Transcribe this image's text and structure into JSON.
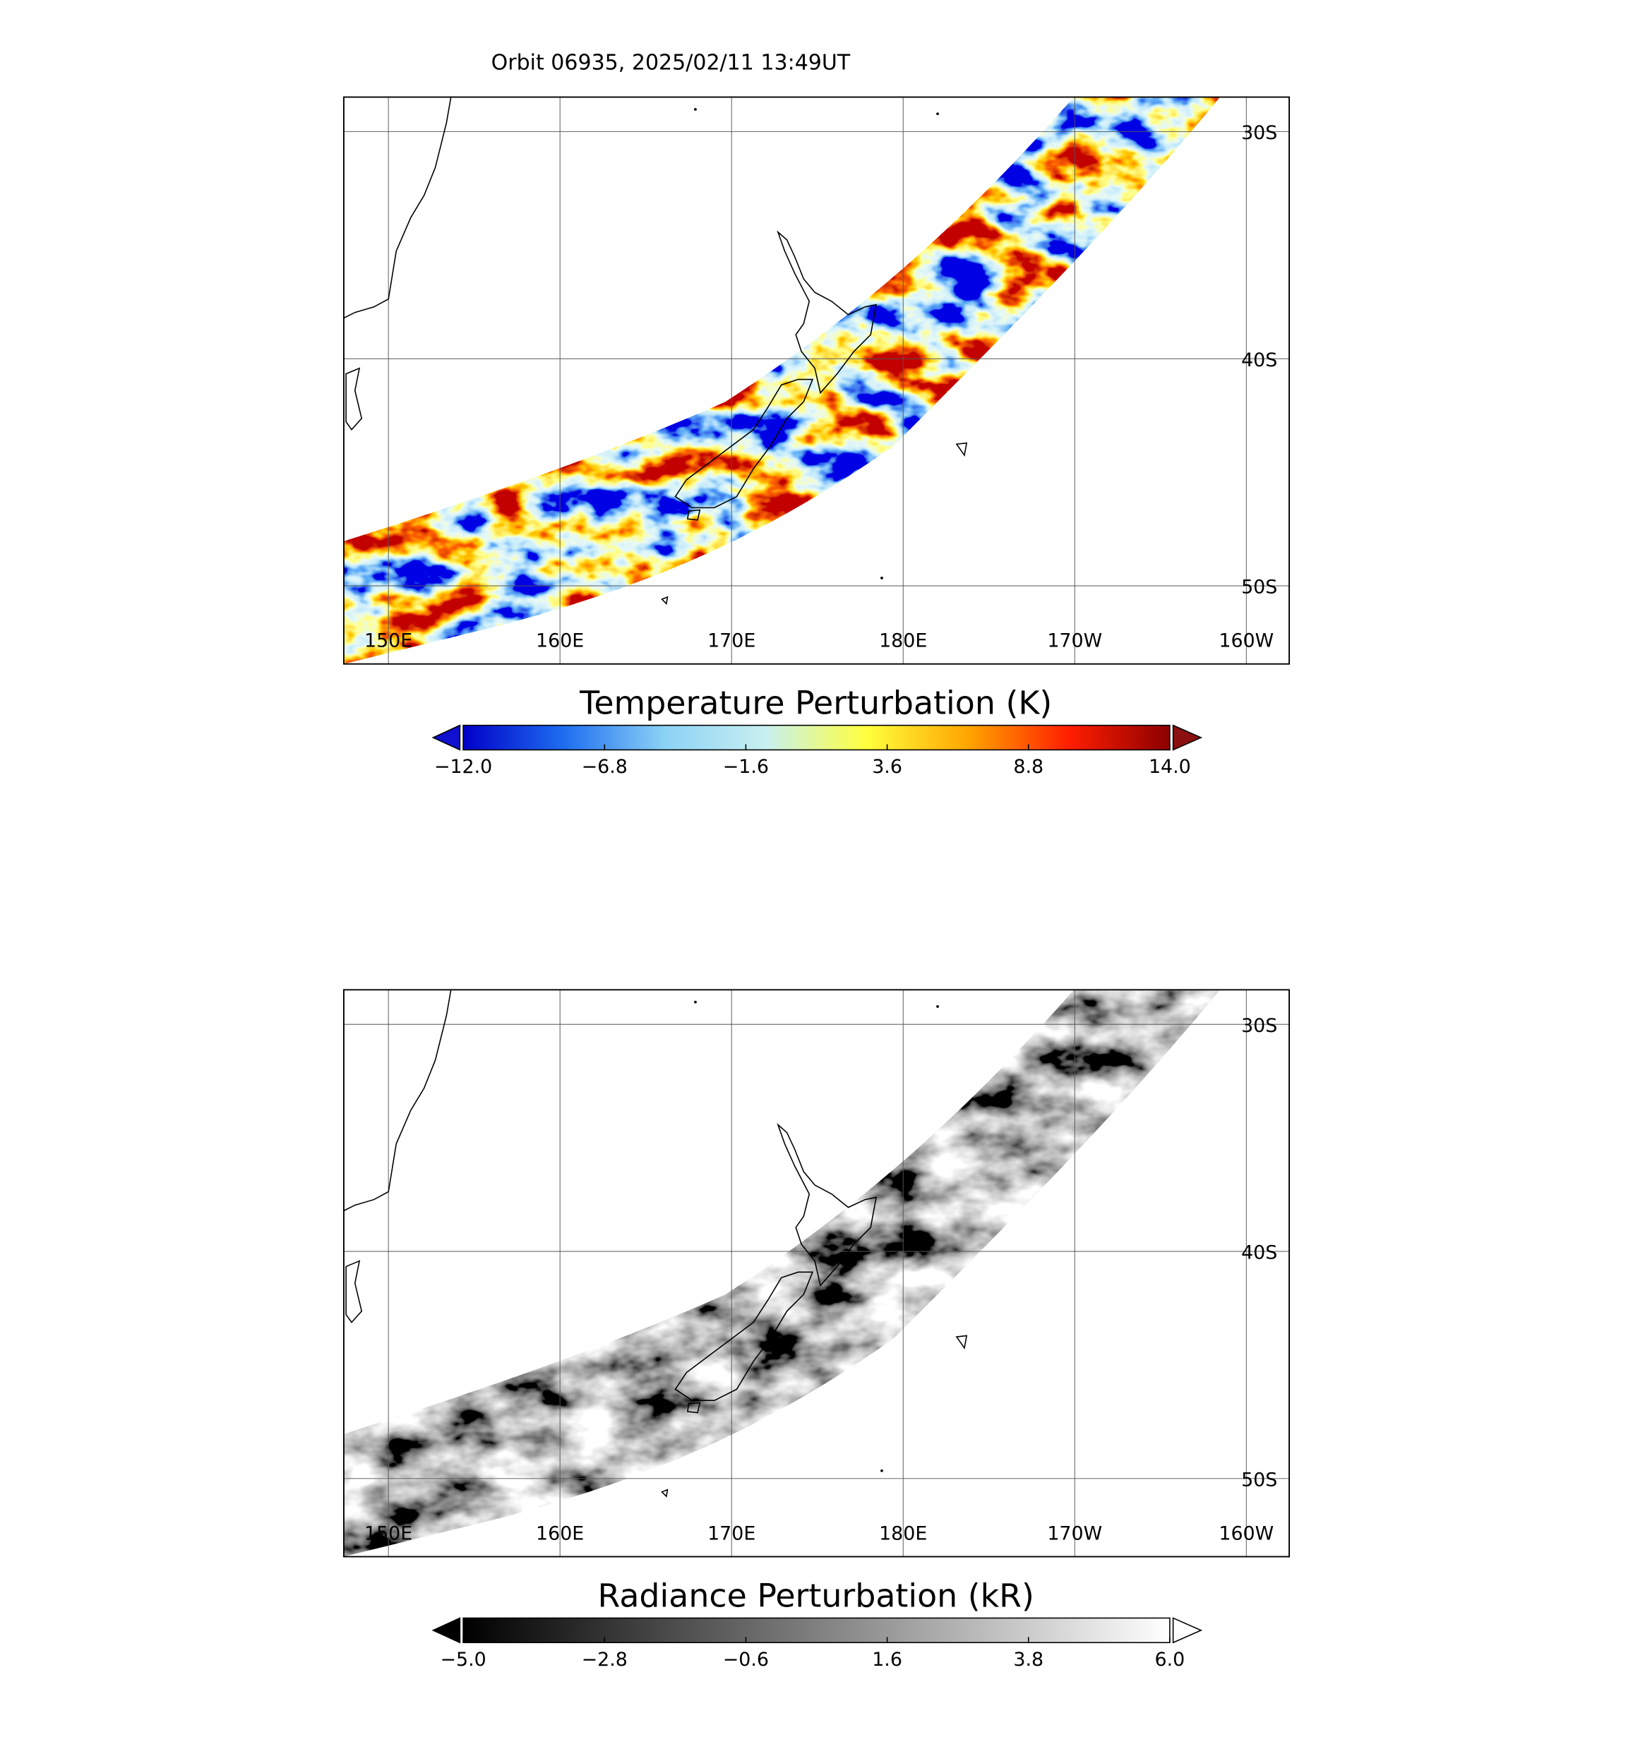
{
  "title": "Orbit 06935, 2025/02/11 13:49UT",
  "panels": [
    {
      "lon_lim": [
        147.4,
        202.5
      ],
      "lat_lim": [
        -53.44,
        -28.48
      ],
      "lon_ticks": [
        {
          "value": 150,
          "label": "150E"
        },
        {
          "value": 160,
          "label": "160E"
        },
        {
          "value": 170,
          "label": "170E"
        },
        {
          "value": 180,
          "label": "180E"
        },
        {
          "value": 190,
          "label": "170W"
        },
        {
          "value": 200,
          "label": "160W"
        }
      ],
      "lat_ticks": [
        {
          "value": -30,
          "label": "30S"
        },
        {
          "value": -40,
          "label": "40S"
        },
        {
          "value": -50,
          "label": "50S"
        }
      ],
      "colorbar": {
        "title": "Temperature Perturbation (K)",
        "lim": [
          -12,
          14
        ],
        "ticks": [
          {
            "value": -12,
            "label": "−12.0"
          },
          {
            "value": -6.8,
            "label": "−6.8"
          },
          {
            "value": -1.6,
            "label": "−1.6"
          },
          {
            "value": 3.6,
            "label": "3.6"
          },
          {
            "value": 8.8,
            "label": "8.8"
          },
          {
            "value": 14,
            "label": "14.0"
          }
        ],
        "colors": [
          "#0000c8",
          "#1e6ef0",
          "#8cd2f5",
          "#c8f0f0",
          "#ffff3c",
          "#ffa500",
          "#ff1e00",
          "#8c0000"
        ],
        "under_color": "#1010d0",
        "over_color": "#8c1010"
      }
    },
    {
      "lon_lim": [
        147.4,
        202.5
      ],
      "lat_lim": [
        -53.44,
        -28.48
      ],
      "lon_ticks": [
        {
          "value": 150,
          "label": "150E"
        },
        {
          "value": 160,
          "label": "160E"
        },
        {
          "value": 170,
          "label": "170E"
        },
        {
          "value": 180,
          "label": "180E"
        },
        {
          "value": 190,
          "label": "170W"
        },
        {
          "value": 200,
          "label": "160W"
        }
      ],
      "lat_ticks": [
        {
          "value": -30,
          "label": "30S"
        },
        {
          "value": -40,
          "label": "40S"
        },
        {
          "value": -50,
          "label": "50S"
        }
      ],
      "colorbar": {
        "title": "Radiance Perturbation (kR)",
        "lim": [
          -5,
          6
        ],
        "ticks": [
          {
            "value": -5,
            "label": "−5.0"
          },
          {
            "value": -2.8,
            "label": "−2.8"
          },
          {
            "value": -0.6,
            "label": "−0.6"
          },
          {
            "value": 1.6,
            "label": "1.6"
          },
          {
            "value": 3.8,
            "label": "3.8"
          },
          {
            "value": 6,
            "label": "6.0"
          }
        ],
        "colors": [
          "#000000",
          "#ffffff"
        ],
        "under_color": "#000000",
        "over_color": "#ffffff"
      }
    }
  ]
}
